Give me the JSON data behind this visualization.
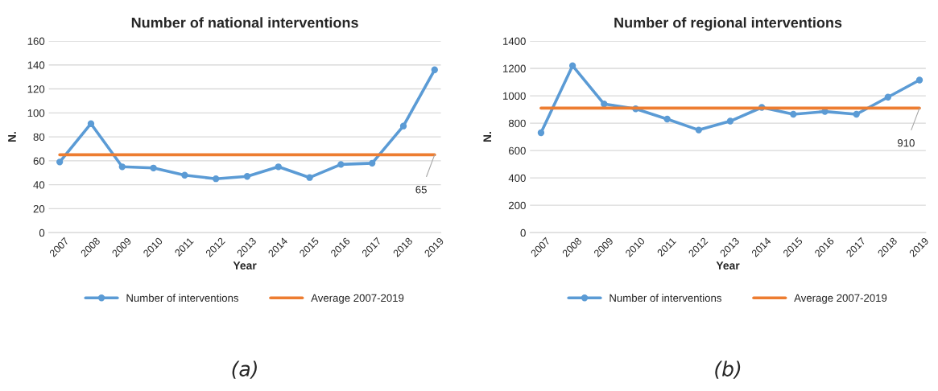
{
  "chart_data": [
    {
      "type": "line",
      "title": "Number of national interventions",
      "xlabel": "Year",
      "ylabel": "N.",
      "categories": [
        "2007",
        "2008",
        "2009",
        "2010",
        "2011",
        "2012",
        "2013",
        "2014",
        "2015",
        "2016",
        "2017",
        "2018",
        "2019"
      ],
      "series": [
        {
          "name": "Number of interventions",
          "color": "#5b9bd5",
          "marker": "circle",
          "values": [
            59,
            91,
            55,
            54,
            48,
            45,
            47,
            55,
            46,
            57,
            58,
            89,
            136
          ]
        },
        {
          "name": "Average 2007-2019",
          "color": "#ed7d31",
          "marker": "none",
          "values": [
            65,
            65,
            65,
            65,
            65,
            65,
            65,
            65,
            65,
            65,
            65,
            65,
            65
          ]
        }
      ],
      "ylim": [
        0,
        160
      ],
      "yticks": [
        0,
        20,
        40,
        60,
        80,
        100,
        120,
        140,
        160
      ],
      "grid": "y",
      "legend": "bottom",
      "annotations": [
        {
          "text": "65",
          "x": "2019",
          "y": 65
        },
        "(a)"
      ]
    },
    {
      "type": "line",
      "title": "Number of regional interventions",
      "xlabel": "Year",
      "ylabel": "N.",
      "categories": [
        "2007",
        "2008",
        "2009",
        "2010",
        "2011",
        "2012",
        "2013",
        "2014",
        "2015",
        "2016",
        "2017",
        "2018",
        "2019"
      ],
      "series": [
        {
          "name": "Number of interventions",
          "color": "#5b9bd5",
          "marker": "circle",
          "values": [
            730,
            1220,
            940,
            905,
            830,
            750,
            815,
            915,
            865,
            885,
            865,
            990,
            1115
          ]
        },
        {
          "name": "Average 2007-2019",
          "color": "#ed7d31",
          "marker": "none",
          "values": [
            910,
            910,
            910,
            910,
            910,
            910,
            910,
            910,
            910,
            910,
            910,
            910,
            910
          ]
        }
      ],
      "ylim": [
        0,
        1400
      ],
      "yticks": [
        0,
        200,
        400,
        600,
        800,
        1000,
        1200,
        1400
      ],
      "grid": "y",
      "legend": "bottom",
      "annotations": [
        {
          "text": "910",
          "x": "2019",
          "y": 910
        },
        "(b)"
      ]
    }
  ]
}
